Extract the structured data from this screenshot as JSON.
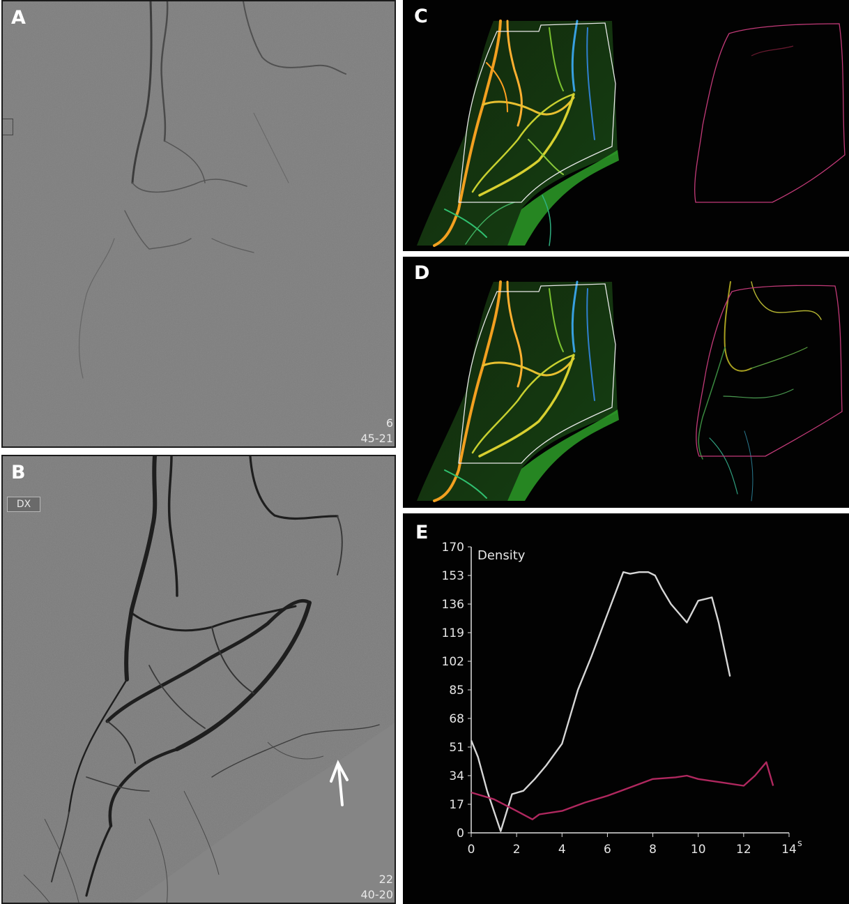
{
  "panels": {
    "a": {
      "label": "A",
      "corner_text": [
        "6",
        "45-21"
      ]
    },
    "b": {
      "label": "B",
      "badge": "DX",
      "corner_text": [
        "22",
        "40-20"
      ]
    },
    "c": {
      "label": "C"
    },
    "d": {
      "label": "D"
    },
    "e": {
      "label": "E"
    }
  },
  "colors": {
    "panel_gray": "#7e7e7e",
    "panel_dark": "#020202",
    "series_white": "#d6d6d6",
    "series_magenta": "#b0285f",
    "roi_white": "#e8e8e8",
    "roi_magenta": "#c23a78"
  },
  "chart_data": {
    "type": "line",
    "title": "Density",
    "xlabel": "",
    "ylabel": "Density",
    "x_unit": "s",
    "xlim": [
      0,
      14
    ],
    "ylim": [
      0,
      170
    ],
    "x_ticks": [
      0,
      2,
      4,
      6,
      8,
      10,
      12,
      14
    ],
    "y_ticks": [
      0,
      17,
      34,
      51,
      68,
      85,
      102,
      119,
      136,
      153,
      170
    ],
    "grid": false,
    "series": [
      {
        "color": "#d6d6d6",
        "x": [
          0,
          0.3,
          0.7,
          1.3,
          1.8,
          2.3,
          2.8,
          3.3,
          4.0,
          4.7,
          5.3,
          6.0,
          6.7,
          7.0,
          7.4,
          7.8,
          8.1,
          8.4,
          8.8,
          9.5,
          10.0,
          10.6,
          10.9,
          11.4
        ],
        "y": [
          55,
          45,
          25,
          1,
          23,
          25,
          32,
          40,
          53,
          85,
          105,
          130,
          155,
          154,
          155,
          155,
          153,
          145,
          136,
          125,
          138,
          140,
          125,
          93
        ]
      },
      {
        "color": "#b0285f",
        "x": [
          0,
          1.0,
          2.0,
          2.7,
          3.0,
          4.0,
          5.0,
          6.0,
          7.0,
          8.0,
          9.0,
          9.5,
          10.0,
          11.0,
          12.0,
          12.5,
          13.0,
          13.3
        ],
        "y": [
          24,
          20,
          13,
          8,
          11,
          13,
          18,
          22,
          27,
          32,
          33,
          34,
          32,
          30,
          28,
          34,
          42,
          28
        ]
      }
    ]
  }
}
